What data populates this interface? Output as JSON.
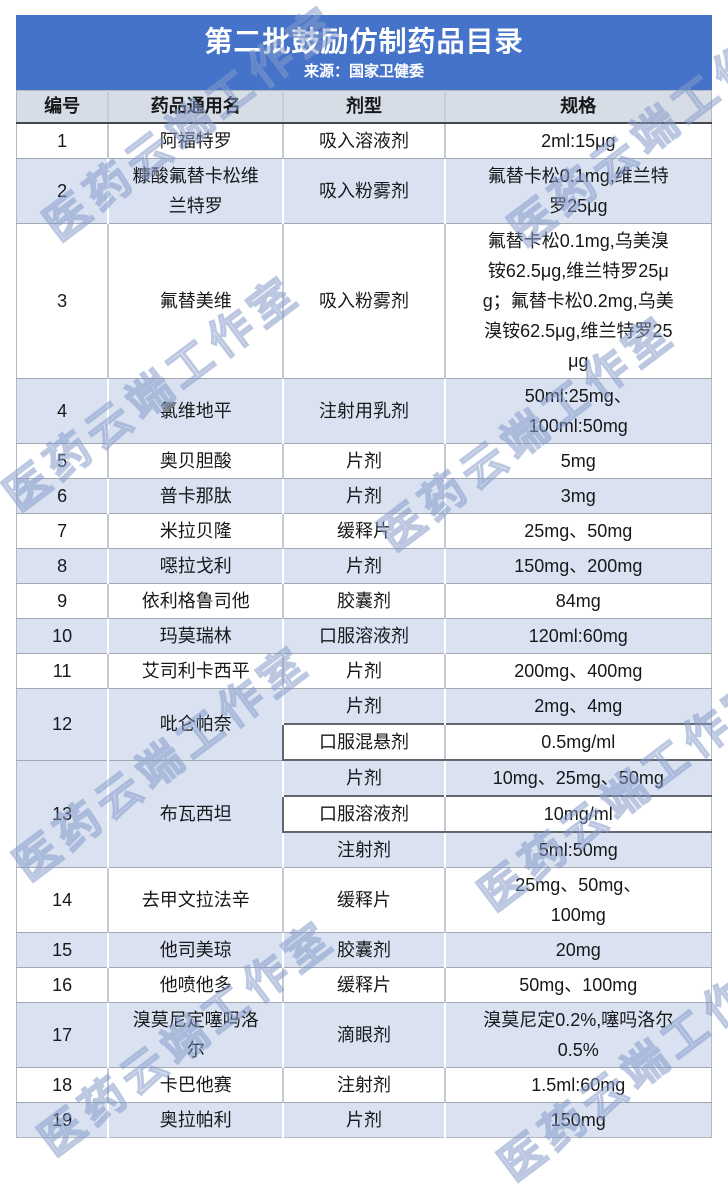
{
  "header": {
    "title": "第二批鼓励仿制药品目录",
    "subtitle": "来源：国家卫健委",
    "bg_color": "#4573CA",
    "text_color": "#ffffff"
  },
  "watermark": {
    "text": "医药云端工作室"
  },
  "table": {
    "header_bg": "#D7DDE6",
    "band_bg": "#DAE2F2",
    "columns": [
      "编号",
      "药品通用名",
      "剂型",
      "规格"
    ],
    "rows": [
      {
        "no": "1",
        "name": "阿福特罗",
        "form": "吸入溶液剂",
        "spec": "2ml:15μg",
        "band": false
      },
      {
        "no": "2",
        "name": "糠酸氟替卡松维\n兰特罗",
        "form": "吸入粉雾剂",
        "spec": "氟替卡松0.1mg,维兰特\n罗25μg",
        "band": true
      },
      {
        "no": "3",
        "name": "氟替美维",
        "form": "吸入粉雾剂",
        "spec": "氟替卡松0.1mg,乌美溴\n铵62.5μg,维兰特罗25μ\ng；氟替卡松0.2mg,乌美\n溴铵62.5μg,维兰特罗25\nμg",
        "band": false
      },
      {
        "no": "4",
        "name": "氯维地平",
        "form": "注射用乳剂",
        "spec": "50ml:25mg、\n100ml:50mg",
        "band": true
      },
      {
        "no": "5",
        "name": "奥贝胆酸",
        "form": "片剂",
        "spec": "5mg",
        "band": false
      },
      {
        "no": "6",
        "name": "普卡那肽",
        "form": "片剂",
        "spec": "3mg",
        "band": true
      },
      {
        "no": "7",
        "name": "米拉贝隆",
        "form": "缓释片",
        "spec": "25mg、50mg",
        "band": false
      },
      {
        "no": "8",
        "name": "噁拉戈利",
        "form": "片剂",
        "spec": "150mg、200mg",
        "band": true
      },
      {
        "no": "9",
        "name": "依利格鲁司他",
        "form": "胶囊剂",
        "spec": "84mg",
        "band": false
      },
      {
        "no": "10",
        "name": "玛莫瑞林",
        "form": "口服溶液剂",
        "spec": "120ml:60mg",
        "band": true
      },
      {
        "no": "11",
        "name": "艾司利卡西平",
        "form": "片剂",
        "spec": "200mg、400mg",
        "band": false
      },
      {
        "no": "12",
        "name": "吡仑帕奈",
        "band": true,
        "subrows": [
          {
            "form": "片剂",
            "spec": "2mg、4mg",
            "band": true
          },
          {
            "form": "口服混悬剂",
            "spec": "0.5mg/ml",
            "band": false
          }
        ]
      },
      {
        "no": "13",
        "name": "布瓦西坦",
        "band": true,
        "subrows": [
          {
            "form": "片剂",
            "spec": "10mg、25mg、50mg",
            "band": true
          },
          {
            "form": "口服溶液剂",
            "spec": "10mg/ml",
            "band": false
          },
          {
            "form": "注射剂",
            "spec": "5ml:50mg",
            "band": true
          }
        ]
      },
      {
        "no": "14",
        "name": "去甲文拉法辛",
        "form": "缓释片",
        "spec": "25mg、50mg、\n100mg",
        "band": false
      },
      {
        "no": "15",
        "name": "他司美琼",
        "form": "胶囊剂",
        "spec": "20mg",
        "band": true
      },
      {
        "no": "16",
        "name": "他喷他多",
        "form": "缓释片",
        "spec": "50mg、100mg",
        "band": false
      },
      {
        "no": "17",
        "name": "溴莫尼定噻吗洛\n尔",
        "form": "滴眼剂",
        "spec": "溴莫尼定0.2%,噻吗洛尔\n0.5%",
        "band": true
      },
      {
        "no": "18",
        "name": "卡巴他赛",
        "form": "注射剂",
        "spec": "1.5ml:60mg",
        "band": false
      },
      {
        "no": "19",
        "name": "奥拉帕利",
        "form": "片剂",
        "spec": "150mg",
        "band": true
      }
    ]
  }
}
